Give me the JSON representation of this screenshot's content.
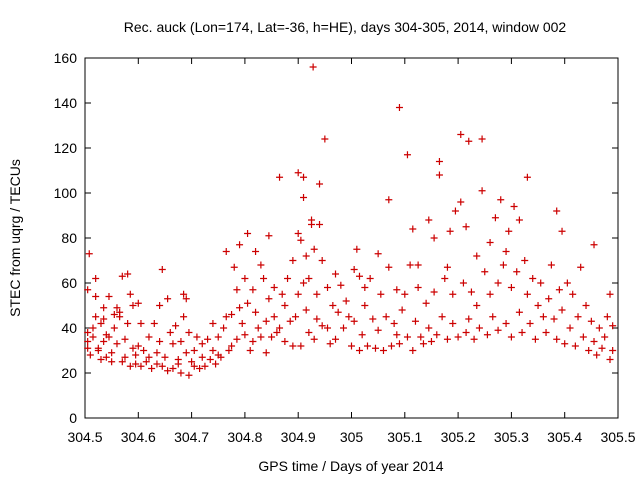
{
  "chart_data": {
    "type": "scatter",
    "title": "Rec. auck (Lon=174, Lat=-36, h=HE), days 304-305, 2014, window 002",
    "xlabel": "GPS time / Days of year 2014",
    "ylabel": "STEC from uqrg / TECUs",
    "xlim": [
      304.5,
      305.5
    ],
    "ylim": [
      0,
      160
    ],
    "xticks": [
      "304.5",
      "304.6",
      "304.7",
      "304.8",
      "304.9",
      "305",
      "305.1",
      "305.2",
      "305.3",
      "305.4",
      "305.5"
    ],
    "yticks": [
      "0",
      "20",
      "40",
      "60",
      "80",
      "100",
      "120",
      "140",
      "160"
    ],
    "marker": "plus",
    "color": "#cc0000",
    "grid": false,
    "legend": "none",
    "points": [
      [
        304.505,
        34
      ],
      [
        304.505,
        31
      ],
      [
        304.505,
        38
      ],
      [
        304.505,
        57
      ],
      [
        304.508,
        73
      ],
      [
        304.51,
        28
      ],
      [
        304.515,
        40
      ],
      [
        304.515,
        36
      ],
      [
        304.52,
        45
      ],
      [
        304.52,
        54
      ],
      [
        304.52,
        62
      ],
      [
        304.525,
        31
      ],
      [
        304.525,
        30
      ],
      [
        304.53,
        42
      ],
      [
        304.53,
        26
      ],
      [
        304.535,
        44
      ],
      [
        304.535,
        34
      ],
      [
        304.535,
        49
      ],
      [
        304.54,
        37
      ],
      [
        304.54,
        27
      ],
      [
        304.545,
        54
      ],
      [
        304.545,
        36
      ],
      [
        304.55,
        29
      ],
      [
        304.55,
        25
      ],
      [
        304.555,
        40
      ],
      [
        304.555,
        46
      ],
      [
        304.56,
        33
      ],
      [
        304.56,
        49
      ],
      [
        304.565,
        47
      ],
      [
        304.565,
        45
      ],
      [
        304.57,
        25
      ],
      [
        304.57,
        63
      ],
      [
        304.575,
        27
      ],
      [
        304.575,
        35
      ],
      [
        304.58,
        64
      ],
      [
        304.58,
        42
      ],
      [
        304.585,
        23
      ],
      [
        304.585,
        55
      ],
      [
        304.59,
        31
      ],
      [
        304.59,
        50
      ],
      [
        304.595,
        24
      ],
      [
        304.595,
        28
      ],
      [
        304.6,
        51
      ],
      [
        304.6,
        32
      ],
      [
        304.605,
        23
      ],
      [
        304.605,
        42
      ],
      [
        304.61,
        30
      ],
      [
        304.615,
        25
      ],
      [
        304.62,
        27
      ],
      [
        304.62,
        36
      ],
      [
        304.625,
        22
      ],
      [
        304.63,
        42
      ],
      [
        304.635,
        24
      ],
      [
        304.635,
        29
      ],
      [
        304.64,
        34
      ],
      [
        304.64,
        50
      ],
      [
        304.645,
        66
      ],
      [
        304.645,
        23
      ],
      [
        304.65,
        27
      ],
      [
        304.655,
        21
      ],
      [
        304.655,
        53
      ],
      [
        304.66,
        38
      ],
      [
        304.665,
        22
      ],
      [
        304.665,
        33
      ],
      [
        304.67,
        41
      ],
      [
        304.675,
        24
      ],
      [
        304.675,
        26
      ],
      [
        304.68,
        20
      ],
      [
        304.68,
        34
      ],
      [
        304.685,
        55
      ],
      [
        304.685,
        45
      ],
      [
        304.69,
        53
      ],
      [
        304.69,
        29
      ],
      [
        304.695,
        19
      ],
      [
        304.695,
        38
      ],
      [
        304.7,
        25
      ],
      [
        304.705,
        23
      ],
      [
        304.705,
        30
      ],
      [
        304.71,
        36
      ],
      [
        304.715,
        22
      ],
      [
        304.72,
        27
      ],
      [
        304.72,
        33
      ],
      [
        304.725,
        23
      ],
      [
        304.73,
        35
      ],
      [
        304.735,
        26
      ],
      [
        304.74,
        42
      ],
      [
        304.74,
        30
      ],
      [
        304.745,
        24
      ],
      [
        304.75,
        28
      ],
      [
        304.75,
        36
      ],
      [
        304.755,
        27
      ],
      [
        304.76,
        40
      ],
      [
        304.765,
        74
      ],
      [
        304.765,
        45
      ],
      [
        304.77,
        30
      ],
      [
        304.775,
        46
      ],
      [
        304.775,
        32
      ],
      [
        304.78,
        67
      ],
      [
        304.785,
        57
      ],
      [
        304.785,
        35
      ],
      [
        304.79,
        77
      ],
      [
        304.79,
        49
      ],
      [
        304.795,
        42
      ],
      [
        304.8,
        37
      ],
      [
        304.8,
        62
      ],
      [
        304.805,
        82
      ],
      [
        304.805,
        51
      ],
      [
        304.81,
        30
      ],
      [
        304.815,
        57
      ],
      [
        304.815,
        34
      ],
      [
        304.82,
        74
      ],
      [
        304.82,
        47
      ],
      [
        304.825,
        40
      ],
      [
        304.83,
        36
      ],
      [
        304.83,
        68
      ],
      [
        304.835,
        62
      ],
      [
        304.84,
        43
      ],
      [
        304.84,
        29
      ],
      [
        304.845,
        53
      ],
      [
        304.845,
        81
      ],
      [
        304.85,
        36
      ],
      [
        304.855,
        45
      ],
      [
        304.855,
        58
      ],
      [
        304.86,
        38
      ],
      [
        304.865,
        107
      ],
      [
        304.865,
        40
      ],
      [
        304.87,
        55
      ],
      [
        304.875,
        50
      ],
      [
        304.875,
        34
      ],
      [
        304.88,
        62
      ],
      [
        304.885,
        43
      ],
      [
        304.89,
        32
      ],
      [
        304.89,
        70
      ],
      [
        304.895,
        45
      ],
      [
        304.9,
        109
      ],
      [
        304.9,
        55
      ],
      [
        304.9,
        82
      ],
      [
        304.905,
        79
      ],
      [
        304.905,
        32
      ],
      [
        304.91,
        107
      ],
      [
        304.91,
        98
      ],
      [
        304.91,
        60
      ],
      [
        304.915,
        72
      ],
      [
        304.915,
        48
      ],
      [
        304.92,
        38
      ],
      [
        304.92,
        62
      ],
      [
        304.925,
        88
      ],
      [
        304.925,
        86
      ],
      [
        304.928,
        156
      ],
      [
        304.93,
        75
      ],
      [
        304.93,
        35
      ],
      [
        304.935,
        55
      ],
      [
        304.935,
        44
      ],
      [
        304.94,
        104
      ],
      [
        304.94,
        86
      ],
      [
        304.945,
        41
      ],
      [
        304.945,
        70
      ],
      [
        304.95,
        124
      ],
      [
        304.955,
        40
      ],
      [
        304.955,
        58
      ],
      [
        304.96,
        33
      ],
      [
        304.965,
        50
      ],
      [
        304.97,
        35
      ],
      [
        304.97,
        64
      ],
      [
        304.975,
        47
      ],
      [
        304.98,
        59
      ],
      [
        304.985,
        40
      ],
      [
        304.99,
        52
      ],
      [
        304.995,
        45
      ],
      [
        305.0,
        32
      ],
      [
        305.005,
        43
      ],
      [
        305.005,
        66
      ],
      [
        305.01,
        75
      ],
      [
        305.015,
        30
      ],
      [
        305.015,
        63
      ],
      [
        305.02,
        37
      ],
      [
        305.025,
        50
      ],
      [
        305.025,
        58
      ],
      [
        305.03,
        32
      ],
      [
        305.035,
        62
      ],
      [
        305.04,
        44
      ],
      [
        305.045,
        31
      ],
      [
        305.05,
        73
      ],
      [
        305.05,
        39
      ],
      [
        305.055,
        55
      ],
      [
        305.06,
        30
      ],
      [
        305.065,
        45
      ],
      [
        305.07,
        97
      ],
      [
        305.07,
        67
      ],
      [
        305.075,
        32
      ],
      [
        305.08,
        42
      ],
      [
        305.085,
        57
      ],
      [
        305.085,
        37
      ],
      [
        305.09,
        138
      ],
      [
        305.09,
        33
      ],
      [
        305.095,
        48
      ],
      [
        305.1,
        55
      ],
      [
        305.105,
        117
      ],
      [
        305.105,
        36
      ],
      [
        305.11,
        68
      ],
      [
        305.115,
        30
      ],
      [
        305.115,
        84
      ],
      [
        305.12,
        43
      ],
      [
        305.125,
        68
      ],
      [
        305.125,
        58
      ],
      [
        305.13,
        36
      ],
      [
        305.135,
        33
      ],
      [
        305.14,
        51
      ],
      [
        305.145,
        88
      ],
      [
        305.145,
        40
      ],
      [
        305.15,
        34
      ],
      [
        305.155,
        80
      ],
      [
        305.155,
        56
      ],
      [
        305.16,
        37
      ],
      [
        305.165,
        114
      ],
      [
        305.165,
        108
      ],
      [
        305.17,
        45
      ],
      [
        305.175,
        62
      ],
      [
        305.18,
        35
      ],
      [
        305.18,
        67
      ],
      [
        305.185,
        83
      ],
      [
        305.19,
        42
      ],
      [
        305.19,
        55
      ],
      [
        305.195,
        92
      ],
      [
        305.2,
        36
      ],
      [
        305.205,
        126
      ],
      [
        305.205,
        96
      ],
      [
        305.21,
        60
      ],
      [
        305.215,
        38
      ],
      [
        305.215,
        85
      ],
      [
        305.22,
        123
      ],
      [
        305.22,
        44
      ],
      [
        305.225,
        56
      ],
      [
        305.23,
        35
      ],
      [
        305.235,
        72
      ],
      [
        305.235,
        50
      ],
      [
        305.24,
        40
      ],
      [
        305.245,
        124
      ],
      [
        305.245,
        101
      ],
      [
        305.25,
        65
      ],
      [
        305.255,
        37
      ],
      [
        305.26,
        78
      ],
      [
        305.26,
        55
      ],
      [
        305.265,
        45
      ],
      [
        305.27,
        89
      ],
      [
        305.275,
        39
      ],
      [
        305.275,
        60
      ],
      [
        305.28,
        97
      ],
      [
        305.285,
        68
      ],
      [
        305.29,
        42
      ],
      [
        305.29,
        74
      ],
      [
        305.295,
        83
      ],
      [
        305.3,
        36
      ],
      [
        305.3,
        58
      ],
      [
        305.305,
        94
      ],
      [
        305.31,
        65
      ],
      [
        305.315,
        47
      ],
      [
        305.315,
        88
      ],
      [
        305.32,
        38
      ],
      [
        305.325,
        70
      ],
      [
        305.33,
        107
      ],
      [
        305.33,
        55
      ],
      [
        305.335,
        42
      ],
      [
        305.34,
        62
      ],
      [
        305.345,
        35
      ],
      [
        305.35,
        50
      ],
      [
        305.355,
        60
      ],
      [
        305.36,
        45
      ],
      [
        305.365,
        38
      ],
      [
        305.37,
        53
      ],
      [
        305.375,
        68
      ],
      [
        305.38,
        44
      ],
      [
        305.385,
        92
      ],
      [
        305.385,
        35
      ],
      [
        305.39,
        57
      ],
      [
        305.395,
        83
      ],
      [
        305.395,
        48
      ],
      [
        305.4,
        33
      ],
      [
        305.405,
        60
      ],
      [
        305.41,
        40
      ],
      [
        305.415,
        55
      ],
      [
        305.42,
        32
      ],
      [
        305.425,
        45
      ],
      [
        305.43,
        67
      ],
      [
        305.435,
        36
      ],
      [
        305.44,
        50
      ],
      [
        305.445,
        30
      ],
      [
        305.45,
        43
      ],
      [
        305.455,
        77
      ],
      [
        305.455,
        34
      ],
      [
        305.46,
        28
      ],
      [
        305.465,
        40
      ],
      [
        305.47,
        31
      ],
      [
        305.475,
        36
      ],
      [
        305.48,
        45
      ],
      [
        305.485,
        26
      ],
      [
        305.485,
        55
      ],
      [
        305.49,
        30
      ],
      [
        305.49,
        41
      ]
    ]
  }
}
